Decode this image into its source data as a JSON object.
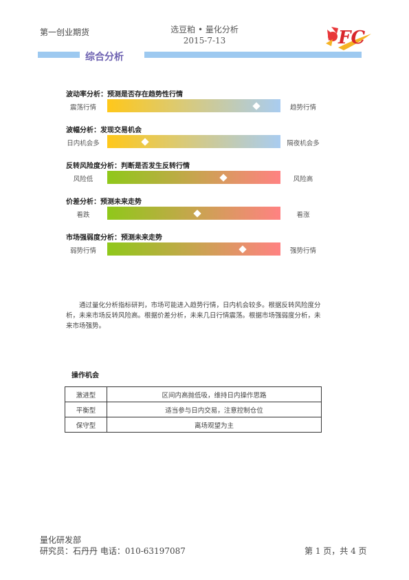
{
  "header": {
    "company": "第一创业期货",
    "report_name": "选豆粕 • 量化分析",
    "date": "2015-7-13",
    "logo_text": "FC"
  },
  "section": {
    "title": "综合分析"
  },
  "indicators": [
    {
      "title": "波动率分析：预测是否存在趋势性行情",
      "left_label": "震荡行情",
      "right_label": "趋势行情",
      "position": 0.86,
      "gradient": [
        "#ffc81a",
        "#a9ccf0"
      ]
    },
    {
      "title": "波幅分析：发现交易机会",
      "left_label": "日内机会多",
      "right_label": "隔夜机会多",
      "position": 0.22,
      "gradient": [
        "#ffc81a",
        "#a9ccf0"
      ]
    },
    {
      "title": "反转风险度分析：判断是否发生反转行情",
      "left_label": "风险低",
      "right_label": "风险高",
      "position": 0.67,
      "gradient": [
        "#8fc81a",
        "#ff8282"
      ]
    },
    {
      "title": "价差分析：预测未来走势",
      "left_label": "看跌",
      "right_label": "看涨",
      "position": 0.52,
      "gradient": [
        "#8fc81a",
        "#ff8282"
      ]
    },
    {
      "title": "市场强弱度分析：预测未来走势",
      "left_label": "弱势行情",
      "right_label": "强势行情",
      "position": 0.78,
      "gradient": [
        "#8fc81a",
        "#ff8282"
      ]
    }
  ],
  "summary": "通过量化分析指标研判，市场可能进入趋势行情，日内机会较多。根据反转风险度分析，未来市场反转风险高。根据价差分析，未来几日行情震荡。根据市场强弱度分析，未来市场强势。",
  "operations": {
    "title": "操作机会",
    "rows": [
      {
        "type": "激进型",
        "advice": "区间内高抛低吸，维持日内操作思路"
      },
      {
        "type": "平衡型",
        "advice": "适当参与日内交易，注意控制仓位"
      },
      {
        "type": "保守型",
        "advice": "离场观望为主"
      }
    ]
  },
  "footer": {
    "dept": "量化研发部",
    "researcher": "研究员：石丹丹   电话：010-63197087",
    "page": "第 1 页，共 4 页"
  }
}
